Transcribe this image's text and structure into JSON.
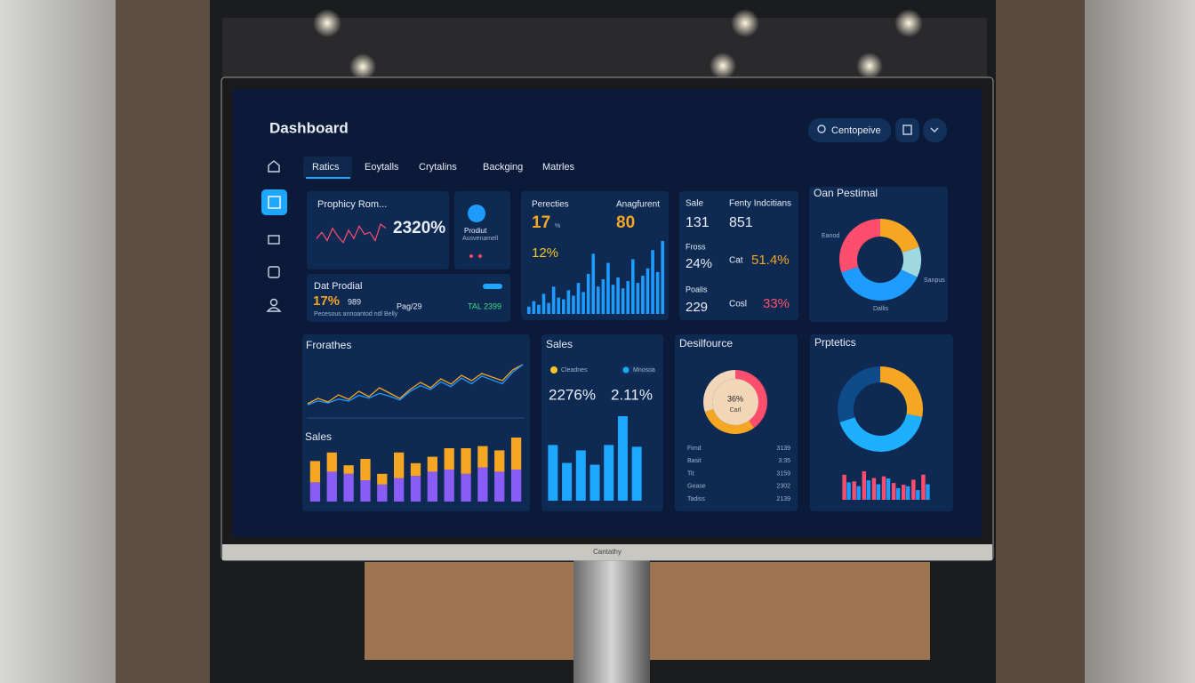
{
  "header": {
    "title": "Dashboard",
    "search": "Centopeive",
    "brand": "Cantathy"
  },
  "tabs": [
    "Ratics",
    "Eoytalls",
    "Crytalins",
    "Backging",
    "Matrles"
  ],
  "card_a": {
    "title": "Prophicy Rom...",
    "value": "2320%",
    "values": [
      6,
      9,
      5,
      11,
      7,
      4,
      10,
      6,
      12,
      8,
      9,
      5,
      13,
      11
    ]
  },
  "card_b": {
    "title": "Prodiut",
    "subtitle": "Ausvenamell"
  },
  "card_c": {
    "title": "Dat Prodial",
    "value": "17%",
    "value2": "989",
    "note": "Pecesous annoantod ndl Belly",
    "stat": "Pag/29",
    "stat2": "TAL 2399"
  },
  "card_d": {
    "label": "Perecties",
    "label2": "Anagfurent",
    "value": "17",
    "unit": "%",
    "value2": "80",
    "value3": "12%",
    "values": [
      8,
      14,
      10,
      22,
      12,
      30,
      18,
      16,
      26,
      20,
      34,
      24,
      44,
      66,
      30,
      38,
      56,
      32,
      40,
      28,
      36,
      60,
      34,
      42,
      50,
      70,
      46,
      80
    ]
  },
  "card_e": {
    "headers": [
      "Sale",
      "Fenty Indcitians"
    ],
    "values": [
      "131",
      "851"
    ],
    "rows": [
      [
        "Fross",
        "24%",
        "Cat",
        "51.4%"
      ],
      [
        "Poalis",
        "229",
        "Cosl",
        "33%"
      ]
    ]
  },
  "card_f": {
    "title": "Oan Pestimal",
    "labels": [
      "Eanod",
      "Sanpus",
      "Dallis"
    ],
    "segments": [
      {
        "value": 20,
        "color": "#f5a623"
      },
      {
        "value": 12,
        "color": "#9fd8e0"
      },
      {
        "value": 38,
        "color": "#1e9bff"
      },
      {
        "value": 30,
        "color": "#ff4d6d"
      }
    ]
  },
  "card_g": {
    "title": "Frorathes",
    "title2": "Sales",
    "lines": [
      {
        "color": "#f5a623",
        "values": [
          12,
          18,
          14,
          22,
          17,
          26,
          20,
          30,
          24,
          18,
          28,
          36,
          30,
          40,
          34,
          44,
          38,
          46,
          42,
          38,
          50,
          56
        ]
      },
      {
        "color": "#1e9bff",
        "values": [
          10,
          14,
          12,
          16,
          14,
          20,
          17,
          22,
          19,
          15,
          24,
          30,
          26,
          34,
          29,
          38,
          32,
          40,
          36,
          32,
          44,
          52
        ]
      }
    ],
    "bars": [
      {
        "color": "#8a5cf6",
        "values": [
          18,
          28,
          26,
          20,
          16,
          22,
          24,
          28,
          30,
          26,
          32,
          28,
          30
        ]
      },
      {
        "color": "#f5a623",
        "values": [
          20,
          18,
          8,
          20,
          10,
          24,
          12,
          14,
          20,
          24,
          20,
          20,
          30
        ]
      }
    ]
  },
  "card_h": {
    "title": "Sales",
    "legend": [
      "Cleadnes",
      "Mnosoa"
    ],
    "value": "2276%",
    "value2": "2.11%",
    "values": [
      62,
      42,
      56,
      40,
      62,
      94,
      60
    ],
    "color": "#1ea7ff"
  },
  "card_i": {
    "title": "Desilfource",
    "center": "36%",
    "center2": "Carl",
    "segments": [
      {
        "value": 40,
        "color": "#ff4d6d"
      },
      {
        "value": 30,
        "color": "#f5a623"
      },
      {
        "value": 30,
        "color": "#f1d6b8"
      }
    ],
    "rows": [
      [
        "Fimd",
        "3139"
      ],
      [
        "Basit",
        "3:35"
      ],
      [
        "Tit",
        "3159"
      ],
      [
        "Gease",
        "2302"
      ],
      [
        "Tadiss",
        "2139"
      ]
    ]
  },
  "card_j": {
    "title": "Prptetics",
    "segments": [
      {
        "value": 28,
        "color": "#f5a623"
      },
      {
        "value": 42,
        "color": "#1eb0ff"
      },
      {
        "value": 30,
        "color": "#0f4a8a"
      }
    ],
    "bars": [
      {
        "color": "#ff4d6d",
        "values": [
          30,
          22,
          34,
          26,
          28,
          20,
          18,
          24,
          30
        ]
      },
      {
        "color": "#1e9bff",
        "values": [
          18,
          14,
          20,
          16,
          22,
          12,
          14,
          10,
          16
        ]
      }
    ]
  }
}
